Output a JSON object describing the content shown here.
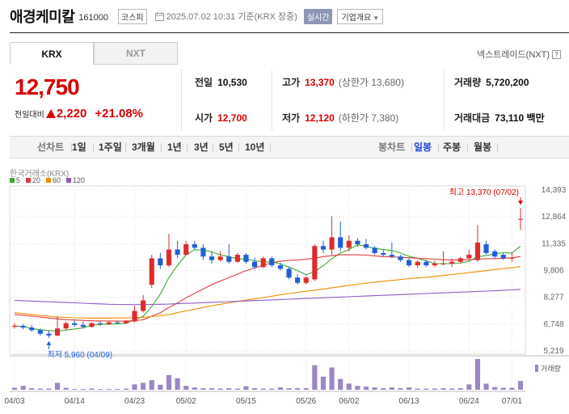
{
  "header": {
    "name": "애경케미칼",
    "code": "161000",
    "market": "코스피",
    "datetime": "2025.07.02 10:31",
    "basis": "기준(KRX 장중)",
    "realtime_badge": "실시간",
    "corp_info": "기업개요"
  },
  "tabs": [
    {
      "label": "KRX",
      "active": true
    },
    {
      "label": "NXT",
      "active": false
    }
  ],
  "nxt_link": "넥스트레이드(NXT)",
  "price": {
    "current": "12,750",
    "change_label": "전일대비",
    "change_amount": "2,220",
    "change_percent": "+21.08%",
    "up_color": "#d60000"
  },
  "stats": {
    "prev_close": {
      "label": "전일",
      "value": "10,530"
    },
    "open": {
      "label": "시가",
      "value": "12,700"
    },
    "high": {
      "label": "고가",
      "value": "13,370",
      "sub": "(상한가 13,680)"
    },
    "low": {
      "label": "저가",
      "value": "12,120",
      "sub": "(하한가 7,380)"
    },
    "volume": {
      "label": "거래량",
      "value": "5,720,200"
    },
    "amount": {
      "label": "거래대금",
      "value": "73,110 백만"
    }
  },
  "period_bar": {
    "line_chart": "선차트",
    "periods": [
      "1일",
      "1주일",
      "3개월",
      "1년",
      "3년",
      "5년",
      "10년"
    ],
    "candle_chart": "봉차트",
    "candle_types": [
      {
        "label": "일봉",
        "active": true
      },
      {
        "label": "주봉",
        "active": false
      },
      {
        "label": "월봉",
        "active": false
      }
    ]
  },
  "chart_data": {
    "type": "candlestick",
    "source_label": "한국거래소(KRX)",
    "legend": [
      {
        "name": "5",
        "color": "#3aa832"
      },
      {
        "name": "20",
        "color": "#e03c3c"
      },
      {
        "name": "60",
        "color": "#f08c00"
      },
      {
        "name": "120",
        "color": "#8e5cc7"
      }
    ],
    "y_ticks": [
      "14,393",
      "12,864",
      "11,335",
      "9,806",
      "8,277",
      "6,748",
      "5,219"
    ],
    "ylim": [
      5219,
      14393
    ],
    "x_labels": [
      {
        "label": "04/03",
        "index": 0
      },
      {
        "label": "04/14",
        "index": 7
      },
      {
        "label": "04/23",
        "index": 14
      },
      {
        "label": "05/02",
        "index": 20
      },
      {
        "label": "05/15",
        "index": 27
      },
      {
        "label": "05/26",
        "index": 34
      },
      {
        "label": "06/02",
        "index": 39
      },
      {
        "label": "06/13",
        "index": 46
      },
      {
        "label": "06/24",
        "index": 53
      },
      {
        "label": "07/01",
        "index": 58
      }
    ],
    "annotations": {
      "high": {
        "text": "최고 13,370 (07/02)",
        "index": 59,
        "value": 13370
      },
      "low": {
        "text": "최저 5,960 (04/09)",
        "index": 4,
        "value": 5960
      }
    },
    "volume_label": "거래량",
    "candles": [
      {
        "o": 6600,
        "h": 6800,
        "l": 6500,
        "c": 6650
      },
      {
        "o": 6650,
        "h": 6750,
        "l": 6450,
        "c": 6550
      },
      {
        "o": 6550,
        "h": 6700,
        "l": 6300,
        "c": 6400
      },
      {
        "o": 6400,
        "h": 6500,
        "l": 6100,
        "c": 6200
      },
      {
        "o": 6200,
        "h": 6350,
        "l": 5960,
        "c": 6100
      },
      {
        "o": 6100,
        "h": 7200,
        "l": 6050,
        "c": 6500
      },
      {
        "o": 6500,
        "h": 6900,
        "l": 6400,
        "c": 6800
      },
      {
        "o": 6800,
        "h": 7000,
        "l": 6600,
        "c": 6700
      },
      {
        "o": 6700,
        "h": 6900,
        "l": 6500,
        "c": 6600
      },
      {
        "o": 6600,
        "h": 6850,
        "l": 6550,
        "c": 6800
      },
      {
        "o": 6800,
        "h": 6900,
        "l": 6650,
        "c": 6750
      },
      {
        "o": 6750,
        "h": 6950,
        "l": 6700,
        "c": 6850
      },
      {
        "o": 6850,
        "h": 6950,
        "l": 6750,
        "c": 6800
      },
      {
        "o": 6800,
        "h": 7000,
        "l": 6750,
        "c": 6900
      },
      {
        "o": 6900,
        "h": 7800,
        "l": 6850,
        "c": 7500
      },
      {
        "o": 7500,
        "h": 8400,
        "l": 7400,
        "c": 8100
      },
      {
        "o": 9000,
        "h": 10700,
        "l": 8800,
        "c": 10500
      },
      {
        "o": 10500,
        "h": 10800,
        "l": 9900,
        "c": 10100
      },
      {
        "o": 10100,
        "h": 11900,
        "l": 10000,
        "c": 11000
      },
      {
        "o": 11000,
        "h": 11500,
        "l": 10500,
        "c": 10700
      },
      {
        "o": 10700,
        "h": 11500,
        "l": 10650,
        "c": 11300
      },
      {
        "o": 11300,
        "h": 11500,
        "l": 11000,
        "c": 11100
      },
      {
        "o": 11100,
        "h": 11300,
        "l": 10400,
        "c": 10600
      },
      {
        "o": 10600,
        "h": 10900,
        "l": 10200,
        "c": 10400
      },
      {
        "o": 10400,
        "h": 10900,
        "l": 10300,
        "c": 10600
      },
      {
        "o": 10600,
        "h": 11300,
        "l": 10200,
        "c": 10300
      },
      {
        "o": 10300,
        "h": 10800,
        "l": 10250,
        "c": 10700
      },
      {
        "o": 10700,
        "h": 10800,
        "l": 10200,
        "c": 10300
      },
      {
        "o": 10300,
        "h": 10550,
        "l": 9900,
        "c": 10000
      },
      {
        "o": 10000,
        "h": 10600,
        "l": 9950,
        "c": 10500
      },
      {
        "o": 10500,
        "h": 10600,
        "l": 10000,
        "c": 10100
      },
      {
        "o": 10100,
        "h": 10250,
        "l": 9800,
        "c": 9900
      },
      {
        "o": 9900,
        "h": 10000,
        "l": 9300,
        "c": 9400
      },
      {
        "o": 9400,
        "h": 9600,
        "l": 9000,
        "c": 9100
      },
      {
        "o": 9100,
        "h": 9500,
        "l": 9000,
        "c": 9400
      },
      {
        "o": 9300,
        "h": 11300,
        "l": 9200,
        "c": 11200
      },
      {
        "o": 11200,
        "h": 11500,
        "l": 10800,
        "c": 11000
      },
      {
        "o": 11000,
        "h": 12900,
        "l": 10700,
        "c": 11700
      },
      {
        "o": 11700,
        "h": 12600,
        "l": 10900,
        "c": 11100
      },
      {
        "o": 11100,
        "h": 11800,
        "l": 10900,
        "c": 11500
      },
      {
        "o": 11500,
        "h": 11650,
        "l": 11150,
        "c": 11300
      },
      {
        "o": 11300,
        "h": 11600,
        "l": 11000,
        "c": 11100
      },
      {
        "o": 11100,
        "h": 11200,
        "l": 10700,
        "c": 10800
      },
      {
        "o": 10800,
        "h": 11000,
        "l": 10600,
        "c": 10700
      },
      {
        "o": 10700,
        "h": 11400,
        "l": 10500,
        "c": 10600
      },
      {
        "o": 10600,
        "h": 10700,
        "l": 10300,
        "c": 10400
      },
      {
        "o": 10400,
        "h": 10500,
        "l": 10000,
        "c": 10100
      },
      {
        "o": 10100,
        "h": 10400,
        "l": 9950,
        "c": 10300
      },
      {
        "o": 10300,
        "h": 10400,
        "l": 10000,
        "c": 10100
      },
      {
        "o": 10100,
        "h": 10350,
        "l": 10000,
        "c": 10200
      },
      {
        "o": 10200,
        "h": 10900,
        "l": 10100,
        "c": 10200
      },
      {
        "o": 10200,
        "h": 10500,
        "l": 10000,
        "c": 10300
      },
      {
        "o": 10300,
        "h": 10600,
        "l": 10200,
        "c": 10500
      },
      {
        "o": 10500,
        "h": 11000,
        "l": 10400,
        "c": 10700
      },
      {
        "o": 10400,
        "h": 12400,
        "l": 10300,
        "c": 11400
      },
      {
        "o": 11300,
        "h": 11500,
        "l": 10700,
        "c": 10800
      },
      {
        "o": 10900,
        "h": 11000,
        "l": 10500,
        "c": 10600
      },
      {
        "o": 10700,
        "h": 10800,
        "l": 10400,
        "c": 10500
      },
      {
        "o": 10500,
        "h": 10800,
        "l": 10300,
        "c": 10530
      },
      {
        "o": 12700,
        "h": 13370,
        "l": 12120,
        "c": 12750
      }
    ],
    "volumes": [
      5,
      10,
      4,
      3,
      3,
      18,
      5,
      2,
      2,
      3,
      2,
      2,
      2,
      3,
      14,
      18,
      25,
      13,
      38,
      30,
      10,
      6,
      4,
      4,
      3,
      4,
      3,
      9,
      4,
      3,
      3,
      6,
      4,
      4,
      4,
      64,
      34,
      58,
      28,
      16,
      10,
      8,
      6,
      4,
      6,
      4,
      6,
      3,
      3,
      3,
      4,
      3,
      4,
      14,
      80,
      16,
      7,
      5,
      5,
      23
    ],
    "ma": {
      "5": [
        6650,
        6600,
        6500,
        6420,
        6380,
        6350,
        6410,
        6470,
        6540,
        6680,
        6730,
        6750,
        6760,
        6800,
        6990,
        7200,
        7760,
        8460,
        9400,
        10100,
        10700,
        10990,
        10970,
        10860,
        10700,
        10600,
        10460,
        10460,
        10360,
        10300,
        10300,
        10180,
        10000,
        9800,
        9560,
        9740,
        10080,
        10480,
        10800,
        11000,
        11270,
        11180,
        11070,
        11000,
        10940,
        10800,
        10610,
        10500,
        10360,
        10200,
        10200,
        10200,
        10220,
        10340,
        10600,
        10650,
        10760,
        10820,
        10800,
        11200
      ],
      "20": [
        7300,
        7250,
        7200,
        7150,
        7100,
        7050,
        7000,
        6980,
        6960,
        6940,
        6930,
        6930,
        6920,
        6920,
        6950,
        7000,
        7200,
        7400,
        7700,
        7950,
        8250,
        8500,
        8750,
        9000,
        9200,
        9400,
        9600,
        9800,
        9950,
        10100,
        10250,
        10330,
        10380,
        10400,
        10450,
        10500,
        10600,
        10650,
        10700,
        10700,
        10700,
        10680,
        10640,
        10600,
        10580,
        10560,
        10530,
        10500,
        10480,
        10450,
        10420,
        10400,
        10400,
        10420,
        10450,
        10480,
        10480,
        10500,
        10530,
        10600
      ],
      "60": [
        7400,
        7350,
        7300,
        7250,
        7200,
        7150,
        7130,
        7110,
        7100,
        7090,
        7090,
        7090,
        7100,
        7100,
        7120,
        7140,
        7180,
        7230,
        7300,
        7400,
        7500,
        7600,
        7700,
        7800,
        7880,
        7960,
        8040,
        8120,
        8190,
        8260,
        8340,
        8420,
        8490,
        8560,
        8620,
        8680,
        8750,
        8820,
        8890,
        8960,
        9020,
        9080,
        9140,
        9190,
        9240,
        9290,
        9340,
        9380,
        9420,
        9470,
        9520,
        9570,
        9620,
        9680,
        9740,
        9800,
        9860,
        9910,
        9960,
        10030
      ],
      "120": [
        8100,
        8080,
        8060,
        8040,
        8020,
        8000,
        7980,
        7960,
        7940,
        7920,
        7900,
        7880,
        7870,
        7860,
        7860,
        7860,
        7870,
        7880,
        7890,
        7910,
        7930,
        7950,
        7970,
        7990,
        8010,
        8030,
        8050,
        8070,
        8090,
        8110,
        8130,
        8150,
        8170,
        8190,
        8210,
        8230,
        8250,
        8270,
        8290,
        8310,
        8330,
        8350,
        8370,
        8390,
        8410,
        8430,
        8450,
        8470,
        8490,
        8510,
        8530,
        8550,
        8570,
        8590,
        8610,
        8630,
        8650,
        8670,
        8700,
        8730
      ]
    },
    "up_color": "#e02b2b",
    "down_color": "#1f5fd6",
    "volume_color": "#9b86c6"
  }
}
